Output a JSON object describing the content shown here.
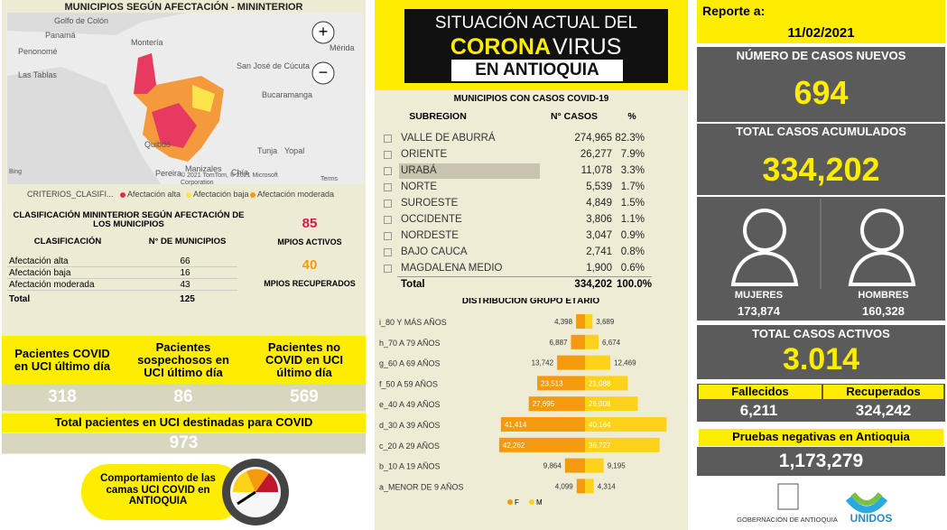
{
  "left": {
    "map_title": "MUNICIPIOS SEGÚN AFECTACIÓN - MININTERIOR",
    "map_labels": [
      "Golfo de Colón",
      "Panamá",
      "Penonomé",
      "Las Tablas",
      "Montería",
      "Mérida",
      "San José de Cúcuta",
      "Bucaramanga",
      "Quibdó",
      "Tunja",
      "Yopal",
      "Pereira",
      "Manizales",
      "Chía",
      "Bing",
      "© 2021 TomTom, © 2021 Microsoft Corporation",
      "Terms"
    ],
    "legend": {
      "title": "CRITERIOS_CLASIFI...",
      "items": [
        "Afectación alta",
        "Afectación baja",
        "Afectación moderada"
      ]
    },
    "table": {
      "title": "CLASIFICACIÓN MININTERIOR SEGÚN AFECTACIÓN DE LOS MUNICIPIOS",
      "headers": [
        "CLASIFICACIÓN",
        "N° DE MUNICIPIOS"
      ],
      "rows": [
        [
          "Afectación alta",
          "66"
        ],
        [
          "Afectación baja",
          "16"
        ],
        [
          "Afectación moderada",
          "43"
        ]
      ],
      "total": [
        "Total",
        "125"
      ]
    },
    "active": {
      "value": "85",
      "label": "MPIOS ACTIVOS"
    },
    "recovered": {
      "value": "40",
      "label": "MPIOS RECUPERADOS"
    },
    "uci": [
      {
        "label": "Pacientes COVID en UCI último día",
        "value": "318"
      },
      {
        "label": "Pacientes sospechosos en UCI último día",
        "value": "86"
      },
      {
        "label": "Pacientes no COVID en UCI último día",
        "value": "569"
      }
    ],
    "uci_total": {
      "label": "Total pacientes en UCI destinadas para COVID",
      "value": "973"
    },
    "button": "Comportamiento de las camas UCI COVID en ANTIOQUIA"
  },
  "middle": {
    "banner": [
      "SITUACIÓN ACTUAL DEL",
      "CORONA",
      "VIRUS",
      "EN ANTIOQUIA"
    ],
    "table": {
      "title": "MUNICIPIOS CON CASOS COVID-19",
      "headers": [
        "SUBREGION",
        "N° CASOS",
        "%"
      ],
      "rows": [
        [
          "VALLE DE ABURRÁ",
          "274,965",
          "82.3%"
        ],
        [
          "ORIENTE",
          "26,277",
          "7.9%"
        ],
        [
          "URABÁ",
          "11,078",
          "3.3%"
        ],
        [
          "NORTE",
          "5,539",
          "1.7%"
        ],
        [
          "SUROESTE",
          "4,849",
          "1.5%"
        ],
        [
          "OCCIDENTE",
          "3,806",
          "1.1%"
        ],
        [
          "NORDESTE",
          "3,047",
          "0.9%"
        ],
        [
          "BAJO CAUCA",
          "2,741",
          "0.8%"
        ],
        [
          "MAGDALENA MEDIO",
          "1,900",
          "0.6%"
        ]
      ],
      "total": [
        "Total",
        "334,202",
        "100.0%"
      ]
    }
  },
  "chart_data": {
    "type": "bar",
    "title": "DISTRIBUCIÓN GRUPO ETÁRIO",
    "categories": [
      "i_80 Y MÁS AÑOS",
      "h_70 A 79 AÑOS",
      "g_60 A 69 AÑOS",
      "f_50 A 59 AÑOS",
      "e_40 A 49 AÑOS",
      "d_30 A 39 AÑOS",
      "c_20 A 29 AÑOS",
      "b_10 A 19 AÑOS",
      "a_MENOR DE 9 AÑOS"
    ],
    "series": [
      {
        "name": "F",
        "color": "#f59a0c",
        "values": [
          4398,
          6887,
          13742,
          23513,
          27695,
          41414,
          42262,
          9864,
          4099
        ],
        "value_labels": [
          "4,398",
          "6,887",
          "13,742",
          "23,513",
          "27,695",
          "41,414",
          "42,262",
          "9,864",
          "4,099"
        ]
      },
      {
        "name": "M",
        "color": "#ffd21a",
        "values": [
          3689,
          6674,
          12469,
          21088,
          26008,
          40164,
          36727,
          9195,
          4314
        ],
        "value_labels": [
          "3,689",
          "6,674",
          "12,469",
          "21,088",
          "26,008",
          "40,164",
          "36,727",
          "9,195",
          "4,314"
        ]
      }
    ]
  },
  "right": {
    "report_label": "Reporte a:",
    "date": "11/02/2021",
    "new_label": "NÚMERO DE CASOS NUEVOS",
    "new_value": "694",
    "total_label": "TOTAL CASOS ACUMULADOS",
    "total_value": "334,202",
    "women_label": "MUJERES",
    "women_value": "173,874",
    "men_label": "HOMBRES",
    "men_value": "160,328",
    "active_label": "TOTAL CASOS ACTIVOS",
    "active_value": "3.014",
    "deaths_label": "Fallecidos",
    "deaths_value": "6,211",
    "recovered_label": "Recuperados",
    "recovered_value": "324,242",
    "tests_label": "Pruebas negativas en Antioquia",
    "tests_value": "1,173,279",
    "logos": [
      "GOBERNACIÓN DE ANTIOQUIA",
      "UNIDOS"
    ]
  }
}
